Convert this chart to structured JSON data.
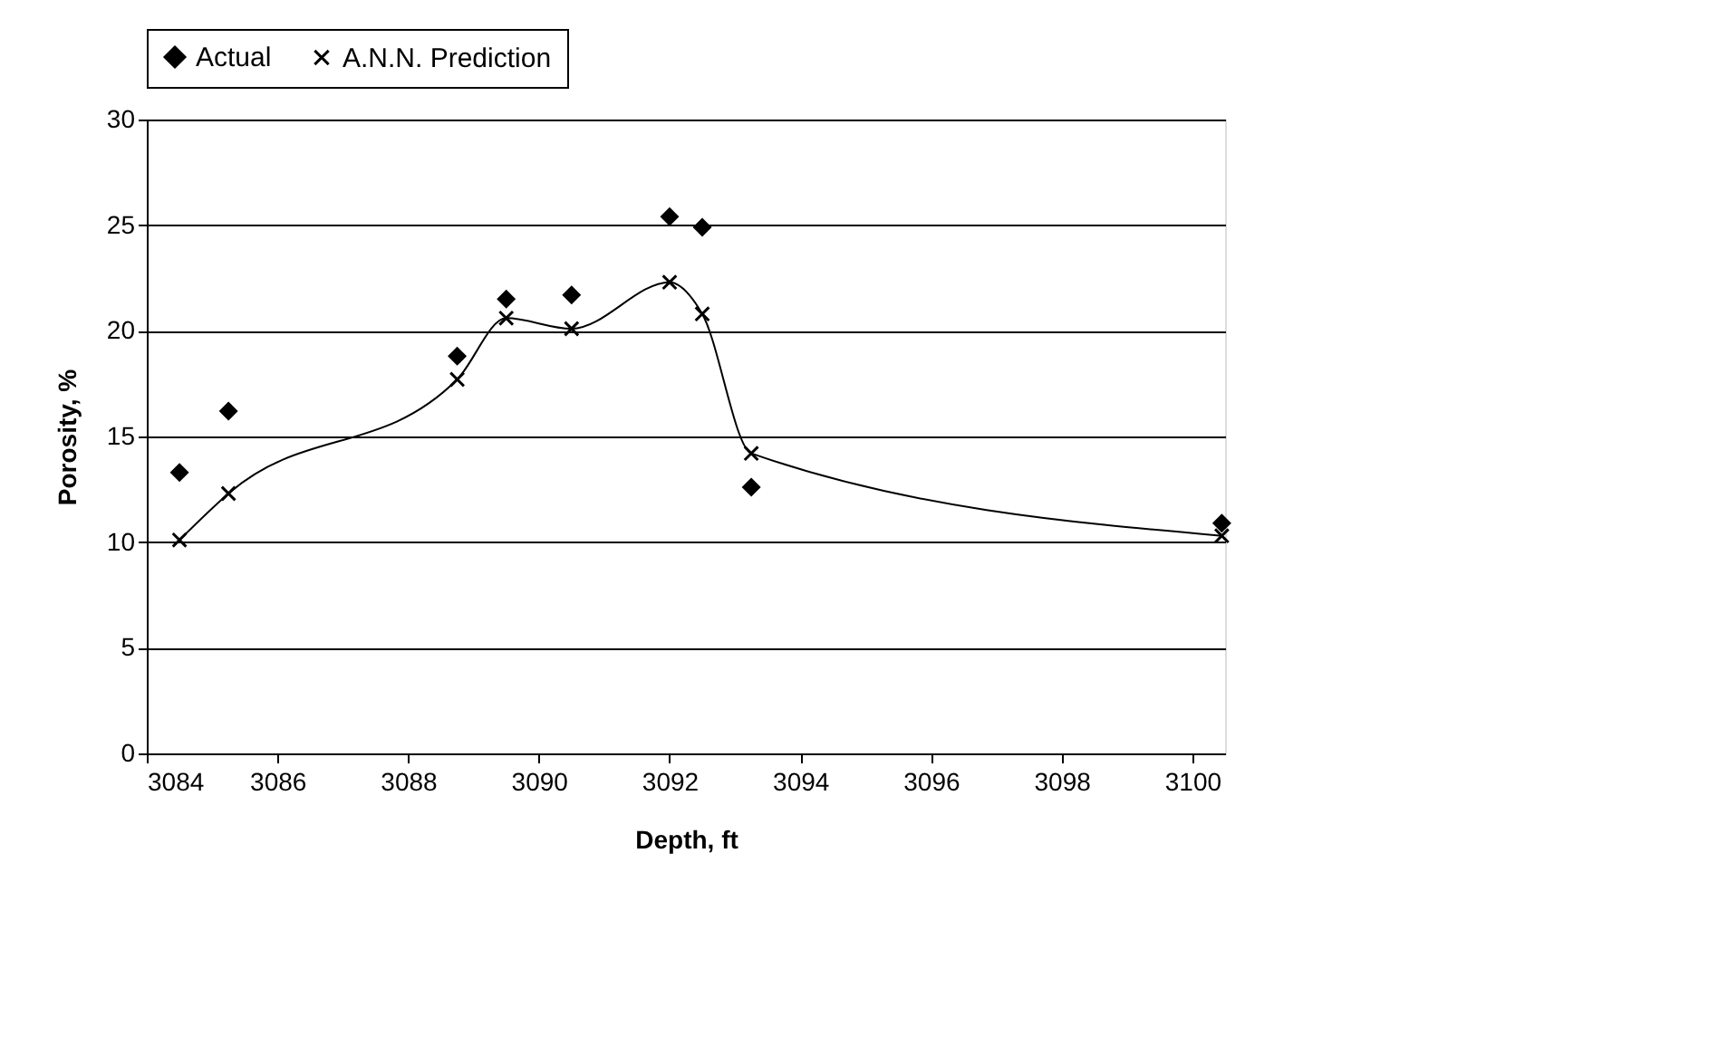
{
  "chart_data": {
    "type": "scatter",
    "xlabel": "Depth, ft",
    "ylabel": "Porosity, %",
    "x": [
      3084.5,
      3085.25,
      3088.75,
      3089.5,
      3090.5,
      3092,
      3092.5,
      3093.25,
      3100.45
    ],
    "series": [
      {
        "name": "Actual",
        "marker": "diamond",
        "color": "#000000",
        "values": [
          13.3,
          16.2,
          18.8,
          21.5,
          21.7,
          25.4,
          24.9,
          12.6,
          10.9
        ]
      },
      {
        "name": "A.N.N. Prediction",
        "type": "line",
        "marker": "cross",
        "line_style": "solid",
        "color": "#000000",
        "values": [
          10.1,
          12.3,
          17.7,
          20.6,
          20.1,
          22.3,
          20.8,
          14.2,
          10.3
        ]
      }
    ],
    "xlim": [
      3084,
      3100.5
    ],
    "xticks": [
      3084,
      3086,
      3088,
      3090,
      3092,
      3094,
      3096,
      3098,
      3100
    ],
    "ylim": [
      0,
      30
    ],
    "yticks": [
      0,
      5,
      10,
      15,
      20,
      25,
      30
    ],
    "grid": "y",
    "legend": "top"
  }
}
